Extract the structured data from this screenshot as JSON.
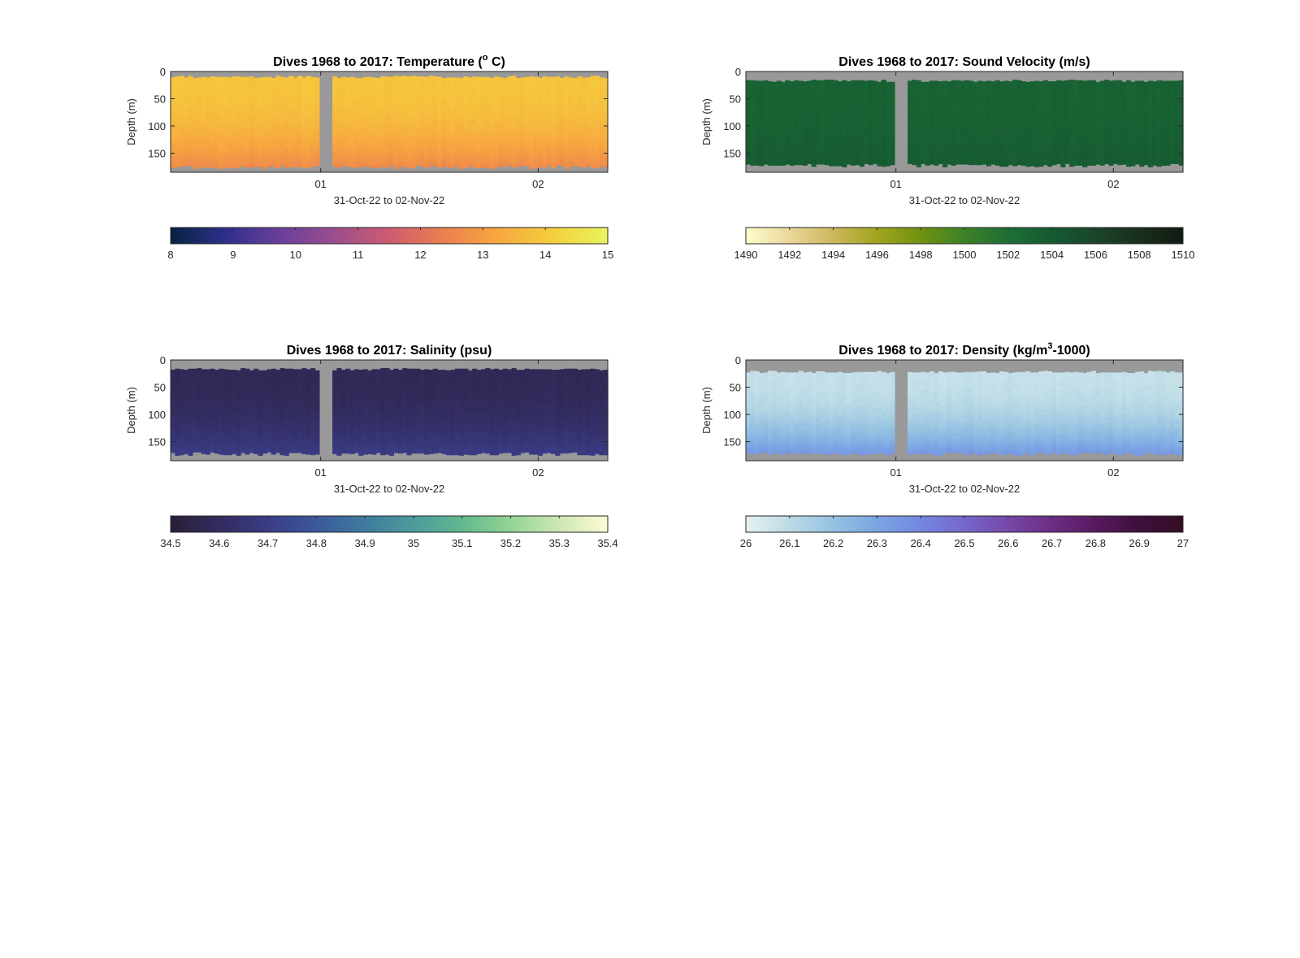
{
  "chart_data": [
    {
      "type": "heatmap",
      "title": "Dives 1968 to 2017: Temperature (",
      "title_sup": "o",
      "title_end": " C)",
      "xlabel": "31-Oct-22 to 02-Nov-22",
      "ylabel": "Depth (m)",
      "ylim": [
        185,
        0
      ],
      "yticks": [
        0,
        50,
        100,
        150
      ],
      "xticks": [
        "01",
        "02"
      ],
      "x_range_days": [
        -0.69,
        1.32
      ],
      "x_tick_values_days": [
        0,
        1
      ],
      "data_gap_days": [
        0.0,
        0.03
      ],
      "colormap": {
        "name": "thermal",
        "range": [
          8,
          15
        ],
        "ticks": [
          "8",
          "9",
          "10",
          "11",
          "12",
          "13",
          "14",
          "15"
        ],
        "stops": [
          "#04233e",
          "#2f2f8c",
          "#6a3f9a",
          "#9b4e8e",
          "#cc5c70",
          "#ec7f4f",
          "#f7a740",
          "#f5cf3c",
          "#e7f55e"
        ]
      },
      "surface_value": 13.9,
      "bottom_value": 12.6,
      "top_depth_m": 8,
      "bottom_depth_m": 178,
      "nodata_color": "#999999"
    },
    {
      "type": "heatmap",
      "title": "Dives 1968 to 2017: Sound Velocity (m/s)",
      "xlabel": "31-Oct-22 to 02-Nov-22",
      "ylabel": "Depth (m)",
      "ylim": [
        185,
        0
      ],
      "yticks": [
        0,
        50,
        100,
        150
      ],
      "xticks": [
        "01",
        "02"
      ],
      "x_range_days": [
        -0.69,
        1.32
      ],
      "x_tick_values_days": [
        0,
        1
      ],
      "data_gap_days": [
        0.0,
        0.03
      ],
      "colormap": {
        "name": "speed",
        "range": [
          1490,
          1510
        ],
        "ticks": [
          "1490",
          "1492",
          "1494",
          "1496",
          "1498",
          "1500",
          "1502",
          "1504",
          "1506",
          "1508",
          "1510"
        ],
        "stops": [
          "#fefccd",
          "#ead79a",
          "#cdb75c",
          "#a1a41d",
          "#6f9310",
          "#3e8128",
          "#1d6e35",
          "#165a32",
          "#1a4529",
          "#1a2e1e",
          "#111b12"
        ]
      },
      "surface_value": 1503.2,
      "bottom_value": 1503.8,
      "top_depth_m": 15,
      "bottom_depth_m": 175,
      "nodata_color": "#999999"
    },
    {
      "type": "heatmap",
      "title": "Dives 1968 to 2017: Salinity (psu)",
      "xlabel": "31-Oct-22 to 02-Nov-22",
      "ylabel": "Depth (m)",
      "ylim": [
        185,
        0
      ],
      "yticks": [
        0,
        50,
        100,
        150
      ],
      "xticks": [
        "01",
        "02"
      ],
      "x_range_days": [
        -0.69,
        1.32
      ],
      "x_tick_values_days": [
        0,
        1
      ],
      "data_gap_days": [
        0.0,
        0.03
      ],
      "colormap": {
        "name": "haline",
        "range": [
          34.5,
          35.4
        ],
        "ticks": [
          "34.5",
          "34.6",
          "34.7",
          "34.8",
          "34.9",
          "35",
          "35.1",
          "35.2",
          "35.3",
          "35.4"
        ],
        "stops": [
          "#2a1e36",
          "#322c5e",
          "#3a3c86",
          "#3b599a",
          "#3f7b9f",
          "#4c9b9c",
          "#62b890",
          "#93d493",
          "#cde8b3",
          "#fdfbd6"
        ]
      },
      "surface_value": 34.58,
      "bottom_value": 34.7,
      "top_depth_m": 15,
      "bottom_depth_m": 175,
      "nodata_color": "#999999"
    },
    {
      "type": "heatmap",
      "title": "Dives 1968 to 2017: Density (kg/m",
      "title_sup": "3",
      "title_end": "-1000)",
      "xlabel": "31-Oct-22 to 02-Nov-22",
      "ylabel": "Depth (m)",
      "ylim": [
        185,
        0
      ],
      "yticks": [
        0,
        50,
        100,
        150
      ],
      "xticks": [
        "01",
        "02"
      ],
      "x_range_days": [
        -0.69,
        1.32
      ],
      "x_tick_values_days": [
        0,
        1
      ],
      "data_gap_days": [
        0.0,
        0.03
      ],
      "colormap": {
        "name": "dense",
        "range": [
          26,
          27
        ],
        "ticks": [
          "26",
          "26.1",
          "26.2",
          "26.3",
          "26.4",
          "26.5",
          "26.6",
          "26.7",
          "26.8",
          "26.9",
          "27"
        ],
        "stops": [
          "#e6f1f1",
          "#bcdbe6",
          "#95c2e2",
          "#7ba5e3",
          "#7487e0",
          "#7666cb",
          "#7648a8",
          "#6c2d85",
          "#581a5f",
          "#3d0f3c",
          "#360e24"
        ]
      },
      "surface_value": 26.08,
      "bottom_value": 26.35,
      "top_depth_m": 20,
      "bottom_depth_m": 175,
      "nodata_color": "#999999"
    }
  ]
}
